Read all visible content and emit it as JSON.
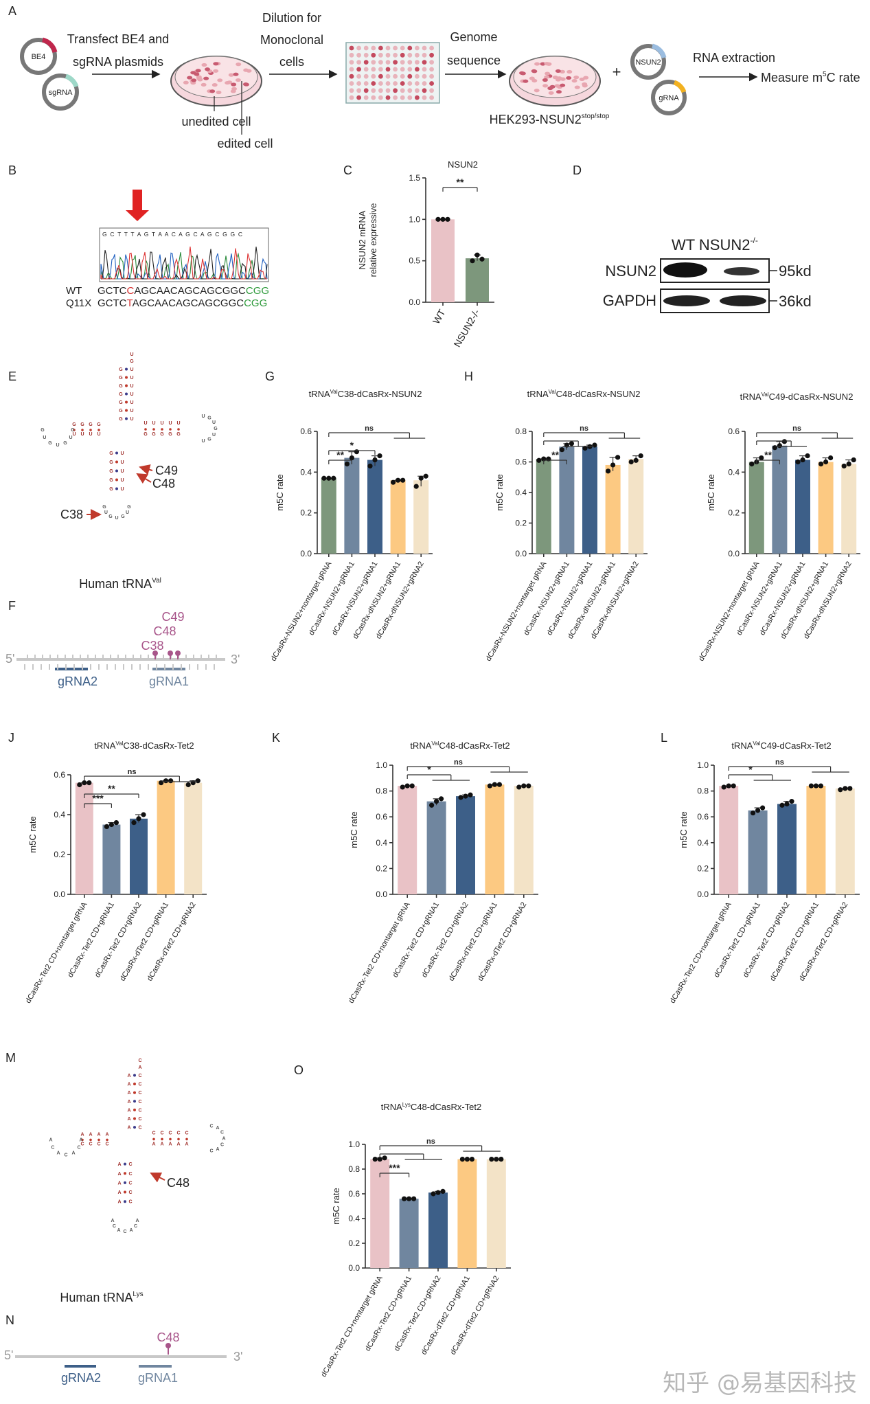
{
  "colors": {
    "pink": "#e9c2c6",
    "slate": "#70869f",
    "navy": "#3d5f88",
    "orange": "#fcc982",
    "cream": "#f3e3c7",
    "green": "#7d977c",
    "red": "#c0392b",
    "magenta": "#a8558a"
  },
  "panelA": {
    "label": "A",
    "be4": "BE4",
    "sgrna": "sgRNA",
    "step1a": "Transfect BE4 and",
    "step1b": "sgRNA plasmids",
    "unedited": "unedited cell",
    "edited": "edited cell",
    "step2a": "Dilution for",
    "step2b": "Monoclonal",
    "step2c": "cells",
    "step3a": "Genome",
    "step3b": "sequence",
    "cellline": "HEK293-NSUN2",
    "cellline_sup": "stop/stop",
    "plus": "+",
    "nsun2": "NSUN2",
    "grna": "gRNA",
    "step4": "RNA extraction",
    "step5": "Measure m",
    "step5_sup": "5",
    "step5_end": "C rate"
  },
  "panelB": {
    "label": "B",
    "trace_seq": "G C T T T A G T A A C A G C A G C G G C",
    "wt_label": "WT",
    "wt_seq_a": "GCTC",
    "wt_seq_mut": "C",
    "wt_seq_b": "AGCAACAGCAGCGGC",
    "wt_seq_pam": "CGG",
    "mut_label": "Q11X",
    "mut_seq_a": "GCTC",
    "mut_seq_mut": "T",
    "mut_seq_b": "AGCAACAGCAGCGGC",
    "mut_seq_pam": "CGG"
  },
  "panelD": {
    "label": "D",
    "header": "WT  NSUN2",
    "header_sup": "-/-",
    "row1": "NSUN2",
    "row1_kd": "95kd",
    "row2": "GAPDH",
    "row2_kd": "36kd"
  },
  "panelE": {
    "label": "E",
    "c49": "C49",
    "c48": "C48",
    "c38": "C38",
    "caption": "Human tRNA",
    "caption_sup": "Val"
  },
  "panelF": {
    "label": "F",
    "c49": "C49",
    "c48": "C48",
    "c38": "C38",
    "five": "5'",
    "three": "3'",
    "g2": "gRNA2",
    "g1": "gRNA1"
  },
  "panelM": {
    "label": "M",
    "c48": "C48",
    "caption": "Human tRNA",
    "caption_sup": "Lys"
  },
  "panelN": {
    "label": "N",
    "c48": "C48",
    "five": "5'",
    "three": "3'",
    "g2": "gRNA2",
    "g1": "gRNA1"
  },
  "watermark": "知乎 @易基因科技",
  "chart_data": [
    {
      "id": "C",
      "panel": "C",
      "type": "bar",
      "title": "NSUN2",
      "ylabel": "NSUN2 mRNA\nrelative expressive",
      "ylim": [
        0,
        1.5
      ],
      "yticks": [
        "0.0",
        "0.5",
        "1.0",
        "1.5"
      ],
      "categories": [
        "WT",
        "NSUN2-/-"
      ],
      "values": [
        1.0,
        0.53
      ],
      "points": [
        [
          1.0,
          1.0,
          1.0
        ],
        [
          0.5,
          0.57,
          0.52
        ]
      ],
      "colors": [
        "#e9c2c6",
        "#7d977c"
      ],
      "significance": [
        {
          "from": 0,
          "to": 1,
          "label": "**"
        }
      ]
    },
    {
      "id": "G",
      "panel": "G",
      "type": "bar",
      "title": "tRNA",
      "title_sup": "Val",
      "title_end": "C38-dCasRx-NSUN2",
      "ylabel": "m5C rate",
      "ylim": [
        0,
        0.6
      ],
      "yticks": [
        "0.0",
        "0.2",
        "0.4",
        "0.6"
      ],
      "categories": [
        "dCasRx-NSUN2+nontarget gRNA",
        "dCasRx-NSUN2+gRNA1",
        "dCasRx-NSUN2+gRNA1",
        "dCasRx-dNSUN2+gRNA1",
        "dCasRx-dNSUN2+gRNA2"
      ],
      "values": [
        0.37,
        0.47,
        0.46,
        0.36,
        0.36
      ],
      "points": [
        [
          0.37,
          0.37,
          0.37
        ],
        [
          0.44,
          0.47,
          0.5
        ],
        [
          0.43,
          0.46,
          0.48
        ],
        [
          0.35,
          0.36,
          0.36
        ],
        [
          0.33,
          0.37,
          0.38
        ]
      ],
      "colors": [
        "#7d977c",
        "#70869f",
        "#3d5f88",
        "#fcc982",
        "#f3e3c7"
      ],
      "significance": [
        {
          "from": 0,
          "to": 1,
          "label": "**"
        },
        {
          "from": 0,
          "to": 2,
          "label": "*"
        },
        {
          "from": 0,
          "to": "3-4",
          "label": "ns"
        }
      ]
    },
    {
      "id": "H",
      "panel": "H",
      "type": "bar",
      "title": "tRNA",
      "title_sup": "Val",
      "title_end": "C48-dCasRx-NSUN2",
      "ylabel": "m5C rate",
      "ylim": [
        0,
        0.8
      ],
      "yticks": [
        "0.0",
        "0.2",
        "0.4",
        "0.6",
        "0.8"
      ],
      "categories": [
        "dCasRx-NSUN2+nontarget gRNA",
        "dCasRx-NSUN2+gRNA1",
        "dCasRx-NSUN2+gRNA1",
        "dCasRx-dNSUN2+gRNA1",
        "dCasRx-dNSUN2+gRNA2"
      ],
      "values": [
        0.62,
        0.7,
        0.7,
        0.58,
        0.62
      ],
      "points": [
        [
          0.61,
          0.62,
          0.62
        ],
        [
          0.68,
          0.71,
          0.72
        ],
        [
          0.69,
          0.7,
          0.71
        ],
        [
          0.54,
          0.58,
          0.63
        ],
        [
          0.6,
          0.61,
          0.64
        ]
      ],
      "colors": [
        "#7d977c",
        "#70869f",
        "#3d5f88",
        "#fcc982",
        "#f3e3c7"
      ],
      "significance": [
        {
          "from": 0,
          "to": 1,
          "label": "**"
        },
        {
          "from": 0,
          "to": "1-2",
          "label": ""
        },
        {
          "from": 0,
          "to": "3-4",
          "label": "ns"
        }
      ]
    },
    {
      "id": "I",
      "panel": "",
      "type": "bar",
      "title": "tRNA",
      "title_sup": "Val",
      "title_end": "C49-dCasRx-NSUN2",
      "ylabel": "m5C rate",
      "ylim": [
        0,
        0.6
      ],
      "yticks": [
        "0.0",
        "0.2",
        "0.4",
        "0.6"
      ],
      "categories": [
        "dCasRx-NSUN2+nontarget gRNA",
        "dCasRx-NSUN2+gRNA1",
        "dCasRx-NSUN2+gRNA1",
        "dCasRx-dNSUN2+gRNA1",
        "dCasRx-dNSUN2+gRNA2"
      ],
      "values": [
        0.45,
        0.53,
        0.46,
        0.45,
        0.44
      ],
      "points": [
        [
          0.44,
          0.45,
          0.47
        ],
        [
          0.52,
          0.53,
          0.55
        ],
        [
          0.45,
          0.46,
          0.48
        ],
        [
          0.44,
          0.45,
          0.47
        ],
        [
          0.43,
          0.44,
          0.46
        ]
      ],
      "colors": [
        "#7d977c",
        "#70869f",
        "#3d5f88",
        "#fcc982",
        "#f3e3c7"
      ],
      "significance": [
        {
          "from": 0,
          "to": 1,
          "label": "**"
        },
        {
          "from": 0,
          "to": "1-2",
          "label": ""
        },
        {
          "from": 0,
          "to": "3-4",
          "label": "ns"
        }
      ]
    },
    {
      "id": "J",
      "panel": "J",
      "type": "bar",
      "title": "tRNA",
      "title_sup": "Val",
      "title_end": "C38-dCasRx-Tet2",
      "ylabel": "m5C rate",
      "ylim": [
        0,
        0.6
      ],
      "yticks": [
        "0.0",
        "0.2",
        "0.4",
        "0.6"
      ],
      "categories": [
        "dCasRx-Tet2 CD+nontarget gRNA",
        "dCasRx-Tet2 CD+gRNA1",
        "dCasRx-Tet2 CD+gRNA2",
        "dCasRx-dTet2 CD+gRNA1",
        "dCasRx-dTet2 CD+gRNA2"
      ],
      "values": [
        0.56,
        0.35,
        0.38,
        0.57,
        0.56
      ],
      "points": [
        [
          0.55,
          0.56,
          0.56
        ],
        [
          0.34,
          0.35,
          0.36
        ],
        [
          0.36,
          0.38,
          0.4
        ],
        [
          0.56,
          0.57,
          0.57
        ],
        [
          0.55,
          0.56,
          0.57
        ]
      ],
      "colors": [
        "#e9c2c6",
        "#70869f",
        "#3d5f88",
        "#fcc982",
        "#f3e3c7"
      ],
      "significance": [
        {
          "from": 0,
          "to": 1,
          "label": "***"
        },
        {
          "from": 0,
          "to": 2,
          "label": "**"
        },
        {
          "from": 0,
          "to": "3-4",
          "label": "ns"
        }
      ]
    },
    {
      "id": "K",
      "panel": "K",
      "type": "bar",
      "title": "tRNA",
      "title_sup": "Val",
      "title_end": "C48-dCasRx-Tet2",
      "ylabel": "m5C rate",
      "ylim": [
        0,
        1.0
      ],
      "yticks": [
        "0.0",
        "0.2",
        "0.4",
        "0.6",
        "0.8",
        "1.0"
      ],
      "categories": [
        "dCasRx-Tet2 CD+nontarget gRNA",
        "dCasRx-Tet2 CD+gRNA1",
        "dCasRx-Tet2 CD+gRNA2",
        "dCasRx-dTet2 CD+gRNA1",
        "dCasRx-dTet2 CD+gRNA2"
      ],
      "values": [
        0.84,
        0.72,
        0.76,
        0.85,
        0.84
      ],
      "points": [
        [
          0.83,
          0.84,
          0.84
        ],
        [
          0.69,
          0.72,
          0.74
        ],
        [
          0.75,
          0.76,
          0.77
        ],
        [
          0.84,
          0.85,
          0.85
        ],
        [
          0.83,
          0.84,
          0.84
        ]
      ],
      "colors": [
        "#e9c2c6",
        "#70869f",
        "#3d5f88",
        "#fcc982",
        "#f3e3c7"
      ],
      "significance": [
        {
          "from": 0,
          "to": "1-2",
          "label": "*"
        },
        {
          "from": 0,
          "to": "3-4",
          "label": "ns"
        }
      ]
    },
    {
      "id": "L",
      "panel": "L",
      "type": "bar",
      "title": "tRNA",
      "title_sup": "Val",
      "title_end": "C49-dCasRx-Tet2",
      "ylabel": "m5C rate",
      "ylim": [
        0,
        1.0
      ],
      "yticks": [
        "0.0",
        "0.2",
        "0.4",
        "0.6",
        "0.8",
        "1.0"
      ],
      "categories": [
        "dCasRx-Tet2 CD+nontarget gRNA",
        "dCasRx-Tet2 CD+gRNA1",
        "dCasRx-Tet2 CD+gRNA2",
        "dCasRx-dTet2 CD+gRNA1",
        "dCasRx-dTet2 CD+gRNA2"
      ],
      "values": [
        0.84,
        0.65,
        0.7,
        0.84,
        0.82
      ],
      "points": [
        [
          0.83,
          0.84,
          0.84
        ],
        [
          0.63,
          0.65,
          0.67
        ],
        [
          0.69,
          0.7,
          0.72
        ],
        [
          0.84,
          0.84,
          0.84
        ],
        [
          0.81,
          0.82,
          0.82
        ]
      ],
      "colors": [
        "#e9c2c6",
        "#70869f",
        "#3d5f88",
        "#fcc982",
        "#f3e3c7"
      ],
      "significance": [
        {
          "from": 0,
          "to": "1-2",
          "label": "*"
        },
        {
          "from": 0,
          "to": "3-4",
          "label": "ns"
        }
      ]
    },
    {
      "id": "O",
      "panel": "O",
      "type": "bar",
      "title": "tRNA",
      "title_sup": "Lys",
      "title_end": "C48-dCasRx-Tet2",
      "ylabel": "m5C rate",
      "ylim": [
        0,
        1.0
      ],
      "yticks": [
        "0.0",
        "0.2",
        "0.4",
        "0.6",
        "0.8",
        "1.0"
      ],
      "categories": [
        "dCasRx-Tet2 CD+nontarget gRNA",
        "dCasRx-Tet2 CD+gRNA1",
        "dCasRx-Tet2 CD+gRNA2",
        "dCasRx-dTet2 CD+gRNA1",
        "dCasRx-dTet2 CD+gRNA2"
      ],
      "values": [
        0.88,
        0.56,
        0.61,
        0.88,
        0.88
      ],
      "points": [
        [
          0.88,
          0.88,
          0.89
        ],
        [
          0.56,
          0.56,
          0.56
        ],
        [
          0.6,
          0.61,
          0.62
        ],
        [
          0.88,
          0.88,
          0.88
        ],
        [
          0.88,
          0.88,
          0.88
        ]
      ],
      "colors": [
        "#e9c2c6",
        "#70869f",
        "#3d5f88",
        "#fcc982",
        "#f3e3c7"
      ],
      "significance": [
        {
          "from": 0,
          "to": 1,
          "label": "***"
        },
        {
          "from": 0,
          "to": "1-2",
          "label": ""
        },
        {
          "from": 0,
          "to": "3-4",
          "label": "ns"
        }
      ]
    }
  ]
}
